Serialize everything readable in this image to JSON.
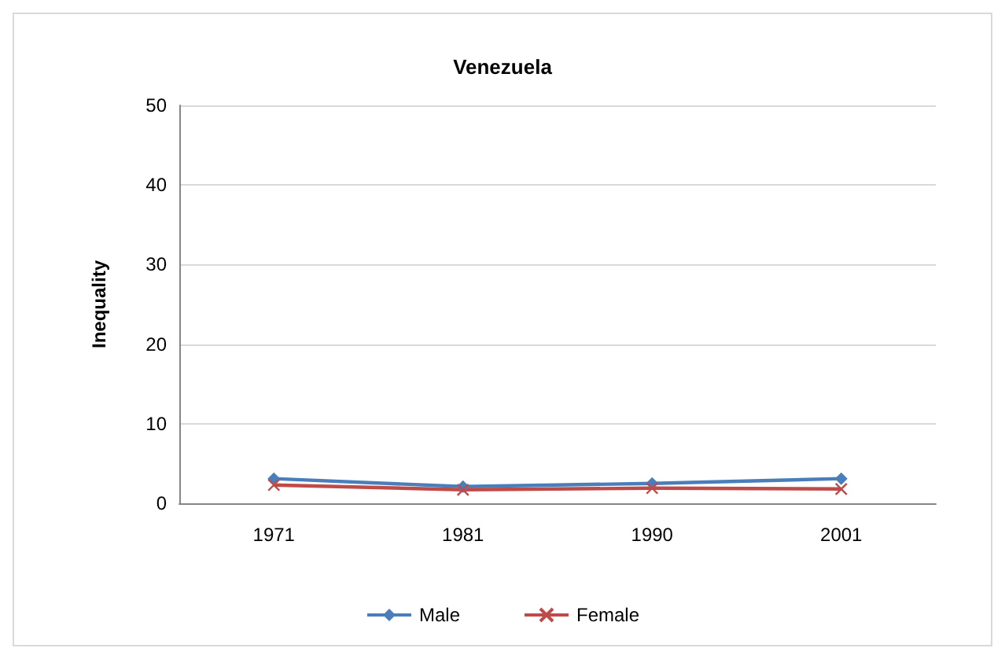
{
  "chart_data": {
    "type": "line",
    "title": "Venezuela",
    "ylabel": "Inequality",
    "categories": [
      "1971",
      "1981",
      "1990",
      "2001"
    ],
    "series": [
      {
        "name": "Male",
        "color": "#4a7ebb",
        "marker": "diamond",
        "values": [
          3.1,
          2.1,
          2.5,
          3.1
        ]
      },
      {
        "name": "Female",
        "color": "#be4b48",
        "marker": "cross",
        "values": [
          2.3,
          1.7,
          1.9,
          1.8
        ]
      }
    ],
    "ylim": [
      0,
      50
    ],
    "yticks": [
      0,
      10,
      20,
      30,
      40,
      50
    ],
    "grid": "y",
    "legend": "bottom"
  }
}
